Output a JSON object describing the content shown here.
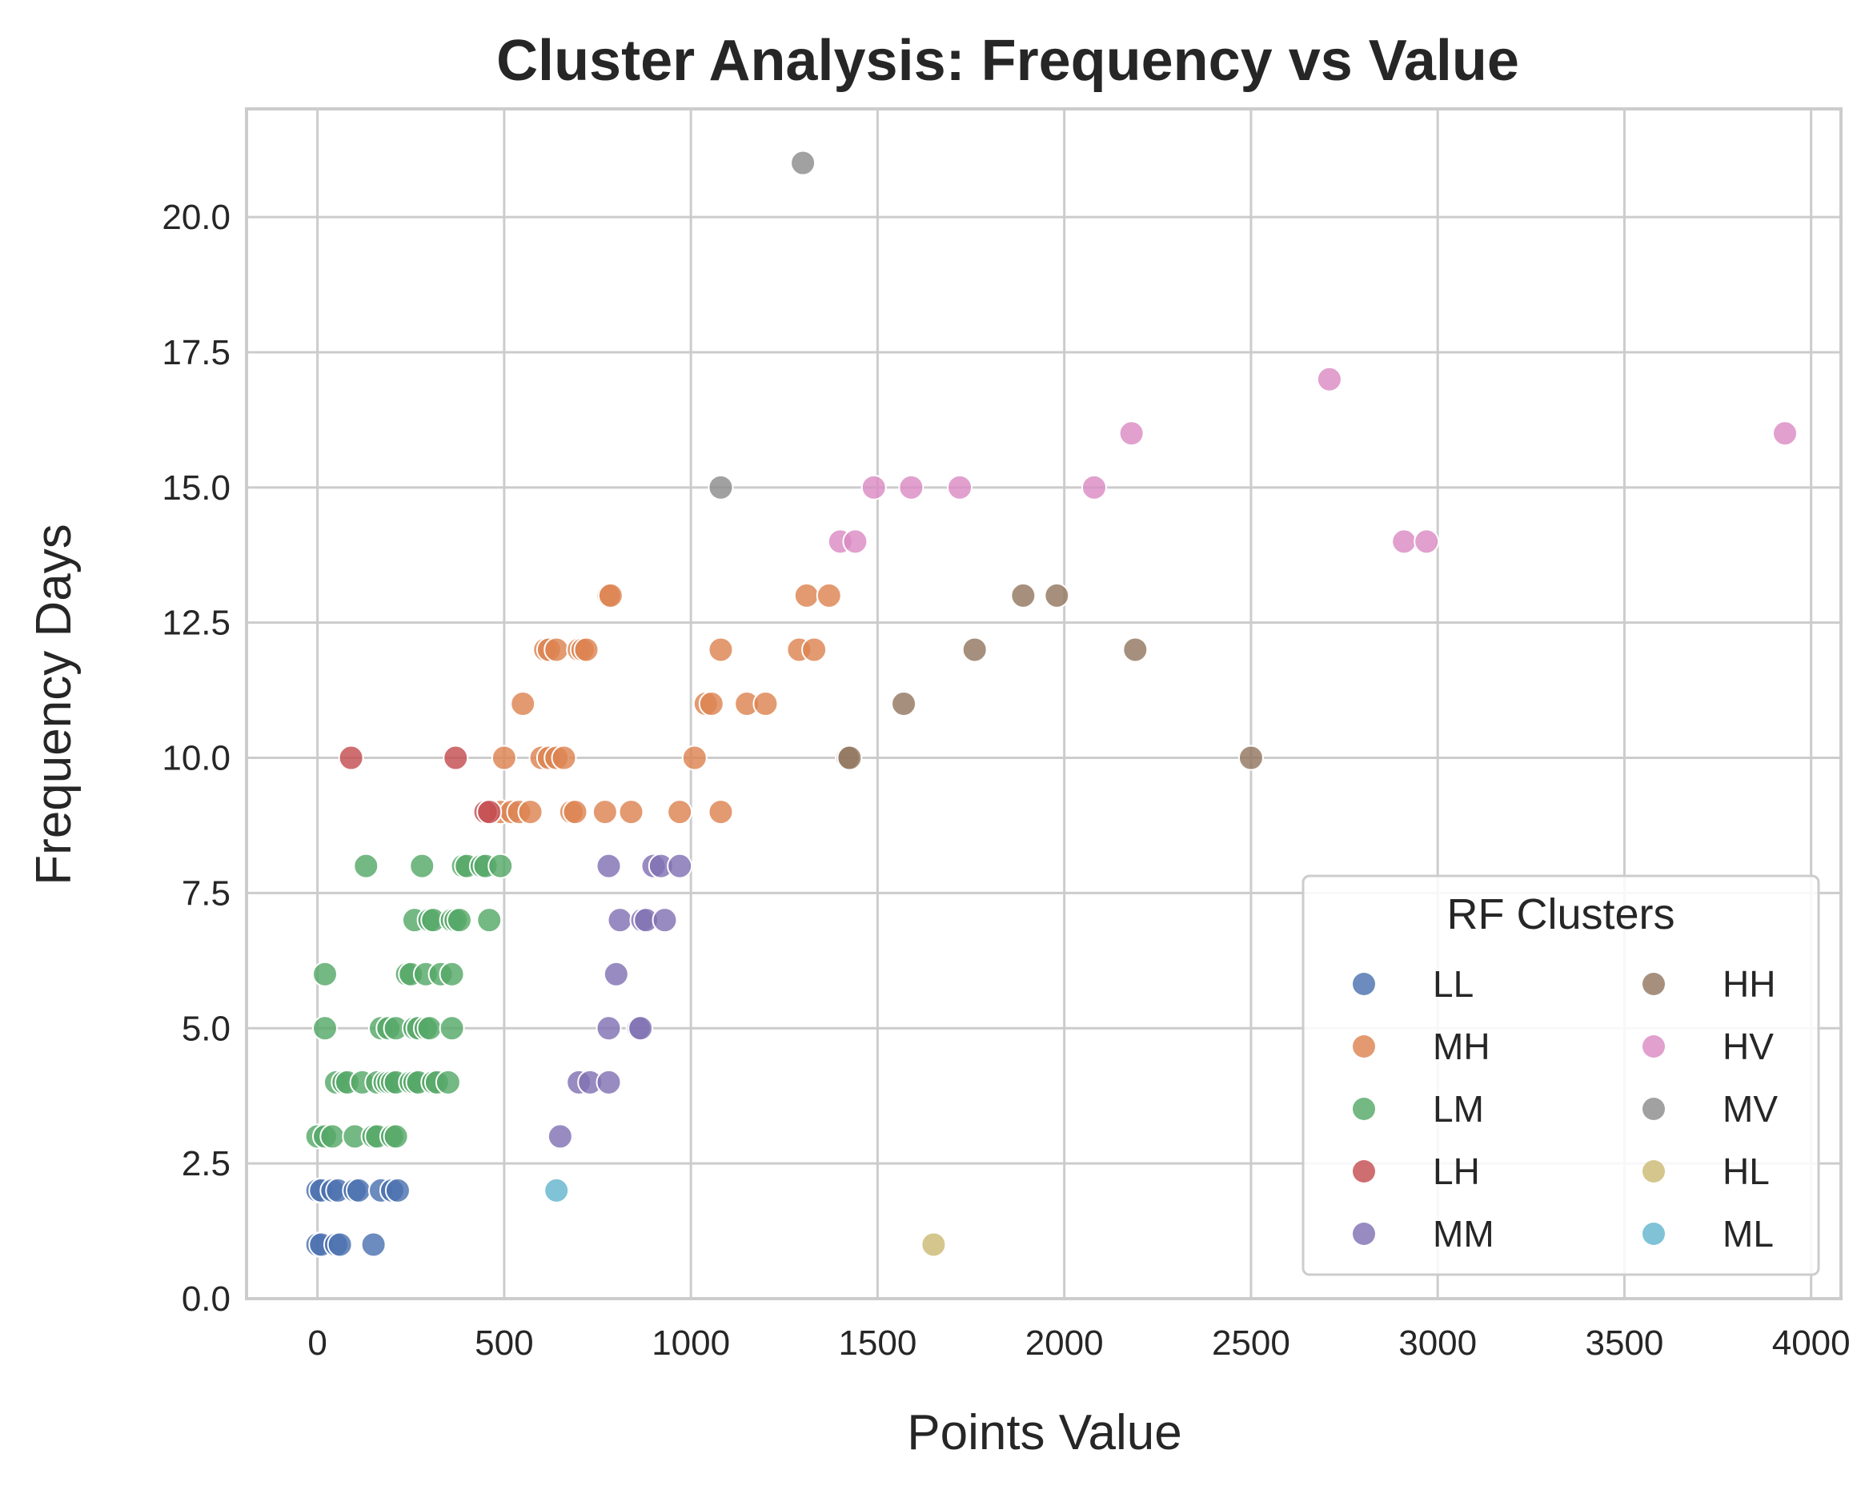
{
  "chart_data": {
    "type": "scatter",
    "title": "Cluster Analysis: Frequency vs Value",
    "xlabel": "Points Value",
    "ylabel": "Frequency Days",
    "xlim": [
      -190,
      4080
    ],
    "ylim": [
      0,
      22
    ],
    "xticks": [
      0,
      500,
      1000,
      1500,
      2000,
      2500,
      3000,
      3500,
      4000
    ],
    "yticks": [
      0,
      2.5,
      5,
      7.5,
      10,
      12.5,
      15,
      17.5,
      20
    ],
    "ytick_format": "one-decimal",
    "grid": true,
    "legend": {
      "title": "RF Clusters",
      "placement": "bottom-right",
      "columns": 2
    },
    "series": [
      {
        "name": "LL",
        "color": "#4c72b0",
        "points": [
          [
            0,
            1
          ],
          [
            10,
            1
          ],
          [
            50,
            1
          ],
          [
            60,
            1
          ],
          [
            150,
            1
          ],
          [
            0,
            2
          ],
          [
            10,
            2
          ],
          [
            40,
            2
          ],
          [
            55,
            2
          ],
          [
            100,
            2
          ],
          [
            110,
            2
          ],
          [
            170,
            2
          ],
          [
            200,
            2
          ],
          [
            215,
            2
          ]
        ]
      },
      {
        "name": "MH",
        "color": "#dd8452",
        "points": [
          [
            500,
            10
          ],
          [
            600,
            10
          ],
          [
            620,
            10
          ],
          [
            640,
            10
          ],
          [
            660,
            10
          ],
          [
            1010,
            10
          ],
          [
            490,
            9
          ],
          [
            520,
            9
          ],
          [
            540,
            9
          ],
          [
            570,
            9
          ],
          [
            680,
            9
          ],
          [
            690,
            9
          ],
          [
            770,
            9
          ],
          [
            840,
            9
          ],
          [
            970,
            9
          ],
          [
            1080,
            9
          ],
          [
            550,
            11
          ],
          [
            1040,
            11
          ],
          [
            1055,
            11
          ],
          [
            1150,
            11
          ],
          [
            1200,
            11
          ],
          [
            610,
            12
          ],
          [
            620,
            12
          ],
          [
            640,
            12
          ],
          [
            700,
            12
          ],
          [
            710,
            12
          ],
          [
            720,
            12
          ],
          [
            1080,
            12
          ],
          [
            1290,
            12
          ],
          [
            1330,
            12
          ],
          [
            780,
            13
          ],
          [
            785,
            13
          ],
          [
            1310,
            13
          ],
          [
            1370,
            13
          ]
        ]
      },
      {
        "name": "LM",
        "color": "#55a868",
        "points": [
          [
            0,
            3
          ],
          [
            20,
            3
          ],
          [
            40,
            3
          ],
          [
            100,
            3
          ],
          [
            150,
            3
          ],
          [
            160,
            3
          ],
          [
            200,
            3
          ],
          [
            210,
            3
          ],
          [
            50,
            4
          ],
          [
            70,
            4
          ],
          [
            80,
            4
          ],
          [
            120,
            4
          ],
          [
            160,
            4
          ],
          [
            180,
            4
          ],
          [
            190,
            4
          ],
          [
            200,
            4
          ],
          [
            210,
            4
          ],
          [
            250,
            4
          ],
          [
            260,
            4
          ],
          [
            270,
            4
          ],
          [
            310,
            4
          ],
          [
            320,
            4
          ],
          [
            350,
            4
          ],
          [
            20,
            5
          ],
          [
            170,
            5
          ],
          [
            190,
            5
          ],
          [
            210,
            5
          ],
          [
            260,
            5
          ],
          [
            270,
            5
          ],
          [
            290,
            5
          ],
          [
            300,
            5
          ],
          [
            360,
            5
          ],
          [
            20,
            6
          ],
          [
            240,
            6
          ],
          [
            250,
            6
          ],
          [
            290,
            6
          ],
          [
            330,
            6
          ],
          [
            360,
            6
          ],
          [
            260,
            7
          ],
          [
            300,
            7
          ],
          [
            310,
            7
          ],
          [
            360,
            7
          ],
          [
            370,
            7
          ],
          [
            380,
            7
          ],
          [
            460,
            7
          ],
          [
            130,
            8
          ],
          [
            280,
            8
          ],
          [
            390,
            8
          ],
          [
            400,
            8
          ],
          [
            440,
            8
          ],
          [
            450,
            8
          ],
          [
            490,
            8
          ]
        ]
      },
      {
        "name": "LH",
        "color": "#c44e52",
        "points": [
          [
            90,
            10
          ],
          [
            370,
            10
          ],
          [
            450,
            9
          ],
          [
            460,
            9
          ]
        ]
      },
      {
        "name": "MM",
        "color": "#8172b3",
        "points": [
          [
            650,
            3
          ],
          [
            700,
            4
          ],
          [
            730,
            4
          ],
          [
            780,
            4
          ],
          [
            780,
            5
          ],
          [
            860,
            5
          ],
          [
            865,
            5
          ],
          [
            800,
            6
          ],
          [
            810,
            7
          ],
          [
            870,
            7
          ],
          [
            880,
            7
          ],
          [
            930,
            7
          ],
          [
            780,
            8
          ],
          [
            900,
            8
          ],
          [
            920,
            8
          ],
          [
            970,
            8
          ]
        ]
      },
      {
        "name": "HH",
        "color": "#937860",
        "points": [
          [
            1420,
            10
          ],
          [
            1425,
            10
          ],
          [
            1570,
            11
          ],
          [
            1760,
            12
          ],
          [
            1890,
            13
          ],
          [
            1980,
            13
          ],
          [
            2190,
            12
          ],
          [
            2500,
            10
          ]
        ]
      },
      {
        "name": "HV",
        "color": "#da8bc3",
        "points": [
          [
            1400,
            14
          ],
          [
            1440,
            14
          ],
          [
            1490,
            15
          ],
          [
            1590,
            15
          ],
          [
            1720,
            15
          ],
          [
            2080,
            15
          ],
          [
            2180,
            16
          ],
          [
            2710,
            17
          ],
          [
            2910,
            14
          ],
          [
            2970,
            14
          ],
          [
            3930,
            16
          ]
        ]
      },
      {
        "name": "MV",
        "color": "#8c8c8c",
        "points": [
          [
            1300,
            21
          ],
          [
            1080,
            15
          ]
        ]
      },
      {
        "name": "HL",
        "color": "#ccb974",
        "points": [
          [
            1650,
            1
          ]
        ]
      },
      {
        "name": "ML",
        "color": "#64b5cd",
        "points": [
          [
            640,
            2
          ]
        ]
      }
    ]
  }
}
